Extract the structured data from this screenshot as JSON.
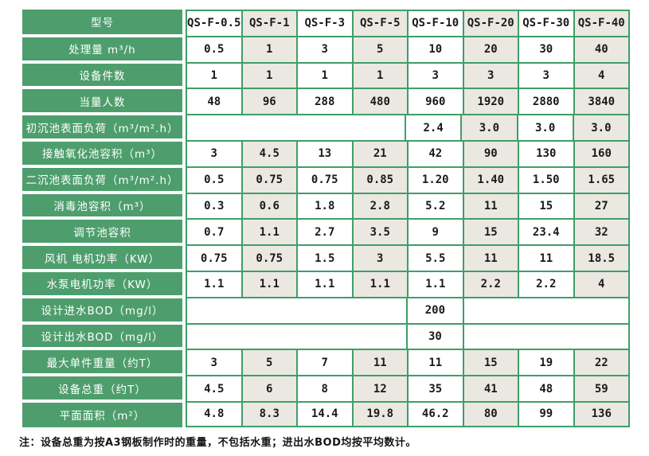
{
  "colors": {
    "label_green": "#4e9e6d",
    "border_green": "#3f9e69",
    "cell_gray": "#eae8e0",
    "cell_white": "#ffffff",
    "text_dark": "#1a1a1a"
  },
  "table": {
    "header": {
      "label": "型号",
      "models": [
        "QS-F-0.5",
        "QS-F-1",
        "QS-F-3",
        "QS-F-5",
        "QS-F-10",
        "QS-F-20",
        "QS-F-30",
        "QS-F-40"
      ]
    },
    "rows": [
      {
        "label": "处理量 m³/h",
        "values": [
          "0.5",
          "1",
          "3",
          "5",
          "10",
          "20",
          "30",
          "40"
        ]
      },
      {
        "label": "设备件数",
        "values": [
          "1",
          "1",
          "1",
          "1",
          "3",
          "3",
          "3",
          "4"
        ]
      },
      {
        "label": "当量人数",
        "values": [
          "48",
          "96",
          "288",
          "480",
          "960",
          "1920",
          "2880",
          "3840"
        ]
      },
      {
        "label": "初沉池表面负荷（m³/m².h）",
        "merged_left_span": 4,
        "values": [
          "2.4",
          "3.0",
          "3.0",
          "3.0"
        ]
      },
      {
        "label": "接触氧化池容积（m³）",
        "values": [
          "3",
          "4.5",
          "13",
          "21",
          "42",
          "90",
          "130",
          "160"
        ]
      },
      {
        "label": "二沉池表面负荷（m³/m².h）",
        "values": [
          "0.5",
          "0.75",
          "0.75",
          "0.85",
          "1.20",
          "1.40",
          "1.50",
          "1.65"
        ]
      },
      {
        "label": "消毒池容积（m³）",
        "values": [
          "0.3",
          "0.6",
          "1.8",
          "2.8",
          "5.2",
          "11",
          "15",
          "27"
        ]
      },
      {
        "label": "调节池容积",
        "values": [
          "0.7",
          "1.1",
          "2.7",
          "3.5",
          "9",
          "15",
          "23.4",
          "32"
        ]
      },
      {
        "label": "风机 电机功率（KW）",
        "values": [
          "0.75",
          "0.75",
          "1.5",
          "3",
          "5.5",
          "11",
          "11",
          "18.5"
        ]
      },
      {
        "label": "水泵电机功率（KW）",
        "values": [
          "1.1",
          "1.1",
          "1.1",
          "1.1",
          "1.1",
          "2.2",
          "2.2",
          "4"
        ]
      },
      {
        "label": "设计进水BOD（mg/l）",
        "merged_left_span": 4,
        "center_value": "200",
        "merged_right_span": 3
      },
      {
        "label": "设计出水BOD（mg/l）",
        "merged_left_span": 4,
        "center_value": "30",
        "merged_right_span": 3
      },
      {
        "label": "最大单件重量（约T）",
        "values": [
          "3",
          "5",
          "7",
          "11",
          "11",
          "15",
          "19",
          "22"
        ]
      },
      {
        "label": "设备总重（约T）",
        "values": [
          "4.5",
          "6",
          "8",
          "12",
          "35",
          "41",
          "48",
          "59"
        ]
      },
      {
        "label": "平面面积（m²）",
        "values": [
          "4.8",
          "8.3",
          "14.4",
          "19.8",
          "46.2",
          "80",
          "99",
          "136"
        ]
      }
    ],
    "note": "注：设备总重为按A3钢板制作时的重量，不包括水重；进出水BOD均按平均数计。"
  }
}
